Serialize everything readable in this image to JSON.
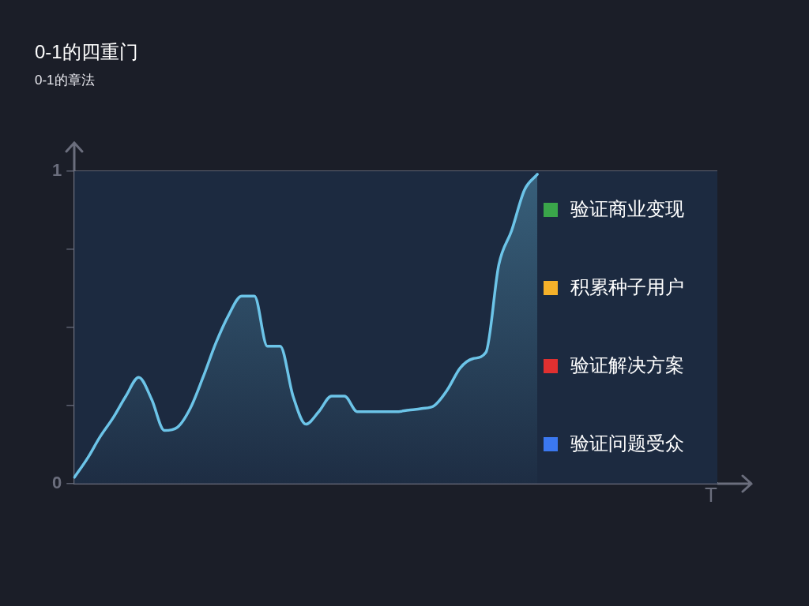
{
  "chart_data": {
    "type": "area",
    "title": "0-1的四重门",
    "subtitle": "0-1的章法",
    "xlabel": "T",
    "categories": [
      null,
      null,
      null,
      null,
      null,
      null,
      null,
      null,
      null,
      null,
      null,
      null,
      null,
      null,
      null,
      null,
      null,
      null,
      null,
      null,
      null,
      null,
      null,
      null,
      null,
      null,
      null,
      null,
      null,
      null,
      null,
      null,
      null,
      null,
      null,
      null,
      null,
      null,
      null,
      null,
      null,
      null,
      null,
      null,
      null,
      null,
      null,
      null,
      null,
      null,
      null
    ],
    "series": [
      {
        "color": "#6cc4e8",
        "values": [
          0.02,
          0.08,
          0.15,
          0.21,
          0.28,
          0.34,
          0.27,
          0.17,
          0.18,
          0.24,
          0.34,
          0.45,
          0.54,
          0.6,
          0.6,
          0.44,
          0.44,
          0.28,
          0.19,
          0.23,
          0.28,
          0.28,
          0.23,
          0.23,
          0.23,
          0.23,
          0.235,
          0.24,
          0.25,
          0.3,
          0.37,
          0.4,
          0.42,
          0.7,
          0.81,
          0.94,
          0.99,
          null,
          null,
          null,
          null,
          null,
          null,
          null,
          null,
          null,
          null,
          null,
          null,
          null,
          null
        ]
      }
    ],
    "ylim": [
      0,
      1
    ],
    "yticks": [
      0,
      {
        "value": 0.25,
        "label": null
      },
      {
        "value": 0.5,
        "label": null
      },
      {
        "value": 0.75,
        "label": null
      },
      1
    ],
    "grid": "y",
    "legend": false,
    "tick_labels": "y",
    "marker": "none",
    "annotations": [
      "验证商业变现",
      "积累种子用户",
      "验证解决方案",
      "验证问题受众"
    ]
  }
}
